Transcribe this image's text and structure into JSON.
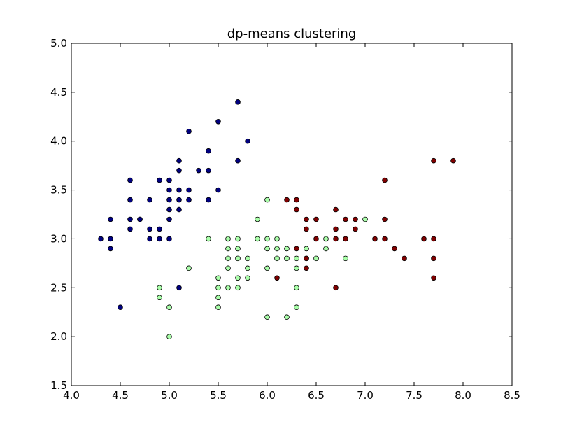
{
  "chart_data": {
    "type": "scatter",
    "title": "dp-means clustering",
    "xlabel": "",
    "ylabel": "",
    "xlim": [
      4.0,
      8.5
    ],
    "ylim": [
      1.5,
      5.0
    ],
    "xticks": [
      "4.0",
      "4.5",
      "5.0",
      "5.5",
      "6.0",
      "6.5",
      "7.0",
      "7.5",
      "8.0",
      "8.5"
    ],
    "yticks": [
      "1.5",
      "2.0",
      "2.5",
      "3.0",
      "3.5",
      "4.0",
      "4.5",
      "5.0"
    ],
    "grid": false,
    "legend": "none",
    "series": [
      {
        "color": "#000080",
        "points": [
          [
            4.3,
            3.0
          ],
          [
            4.4,
            3.2
          ],
          [
            4.4,
            3.0
          ],
          [
            4.4,
            2.9
          ],
          [
            4.5,
            2.3
          ],
          [
            4.6,
            3.6
          ],
          [
            4.6,
            3.4
          ],
          [
            4.6,
            3.2
          ],
          [
            4.6,
            3.1
          ],
          [
            4.7,
            3.2
          ],
          [
            4.7,
            3.2
          ],
          [
            4.8,
            3.4
          ],
          [
            4.8,
            3.1
          ],
          [
            4.8,
            3.0
          ],
          [
            4.9,
            3.6
          ],
          [
            4.9,
            3.1
          ],
          [
            4.9,
            3.0
          ],
          [
            5.0,
            3.6
          ],
          [
            5.0,
            3.5
          ],
          [
            5.0,
            3.4
          ],
          [
            5.0,
            3.3
          ],
          [
            5.0,
            3.2
          ],
          [
            5.0,
            3.0
          ],
          [
            5.1,
            3.8
          ],
          [
            5.1,
            3.7
          ],
          [
            5.1,
            3.5
          ],
          [
            5.1,
            3.4
          ],
          [
            5.1,
            3.3
          ],
          [
            5.1,
            2.5
          ],
          [
            5.2,
            4.1
          ],
          [
            5.2,
            3.5
          ],
          [
            5.2,
            3.4
          ],
          [
            5.3,
            3.7
          ],
          [
            5.4,
            3.9
          ],
          [
            5.4,
            3.7
          ],
          [
            5.4,
            3.4
          ],
          [
            5.5,
            4.2
          ],
          [
            5.5,
            3.5
          ],
          [
            5.7,
            4.4
          ],
          [
            5.7,
            3.8
          ],
          [
            5.8,
            4.0
          ]
        ]
      },
      {
        "color": "#aaffaa",
        "points": [
          [
            4.9,
            2.5
          ],
          [
            4.9,
            2.4
          ],
          [
            5.0,
            2.3
          ],
          [
            5.0,
            2.0
          ],
          [
            5.2,
            2.7
          ],
          [
            5.4,
            3.0
          ],
          [
            5.5,
            2.6
          ],
          [
            5.5,
            2.5
          ],
          [
            5.5,
            2.4
          ],
          [
            5.5,
            2.3
          ],
          [
            5.6,
            3.0
          ],
          [
            5.6,
            2.9
          ],
          [
            5.6,
            2.8
          ],
          [
            5.6,
            2.7
          ],
          [
            5.6,
            2.5
          ],
          [
            5.7,
            3.0
          ],
          [
            5.7,
            2.9
          ],
          [
            5.7,
            2.8
          ],
          [
            5.7,
            2.6
          ],
          [
            5.7,
            2.5
          ],
          [
            5.8,
            2.8
          ],
          [
            5.8,
            2.7
          ],
          [
            5.8,
            2.6
          ],
          [
            5.9,
            3.2
          ],
          [
            5.9,
            3.0
          ],
          [
            6.0,
            3.4
          ],
          [
            6.0,
            3.0
          ],
          [
            6.0,
            2.9
          ],
          [
            6.0,
            2.7
          ],
          [
            6.0,
            2.2
          ],
          [
            6.1,
            3.0
          ],
          [
            6.1,
            2.9
          ],
          [
            6.1,
            2.8
          ],
          [
            6.2,
            2.9
          ],
          [
            6.2,
            2.8
          ],
          [
            6.2,
            2.2
          ],
          [
            6.3,
            2.8
          ],
          [
            6.3,
            2.7
          ],
          [
            6.3,
            2.5
          ],
          [
            6.3,
            2.3
          ],
          [
            6.4,
            2.9
          ],
          [
            6.4,
            2.8
          ],
          [
            6.5,
            2.8
          ],
          [
            6.6,
            3.0
          ],
          [
            6.6,
            2.9
          ],
          [
            6.8,
            2.8
          ],
          [
            7.0,
            3.2
          ]
        ]
      },
      {
        "color": "#800000",
        "points": [
          [
            6.1,
            2.6
          ],
          [
            6.2,
            3.4
          ],
          [
            6.3,
            3.4
          ],
          [
            6.3,
            3.3
          ],
          [
            6.3,
            2.9
          ],
          [
            6.4,
            3.2
          ],
          [
            6.4,
            3.1
          ],
          [
            6.4,
            2.8
          ],
          [
            6.4,
            2.7
          ],
          [
            6.5,
            3.2
          ],
          [
            6.5,
            3.0
          ],
          [
            6.7,
            3.3
          ],
          [
            6.7,
            3.1
          ],
          [
            6.7,
            3.0
          ],
          [
            6.7,
            2.5
          ],
          [
            6.8,
            3.2
          ],
          [
            6.8,
            3.0
          ],
          [
            6.9,
            3.2
          ],
          [
            6.9,
            3.1
          ],
          [
            7.1,
            3.0
          ],
          [
            7.2,
            3.6
          ],
          [
            7.2,
            3.2
          ],
          [
            7.2,
            3.0
          ],
          [
            7.3,
            2.9
          ],
          [
            7.4,
            2.8
          ],
          [
            7.6,
            3.0
          ],
          [
            7.7,
            3.8
          ],
          [
            7.7,
            3.0
          ],
          [
            7.7,
            2.8
          ],
          [
            7.7,
            2.6
          ],
          [
            7.9,
            3.8
          ]
        ]
      }
    ]
  }
}
